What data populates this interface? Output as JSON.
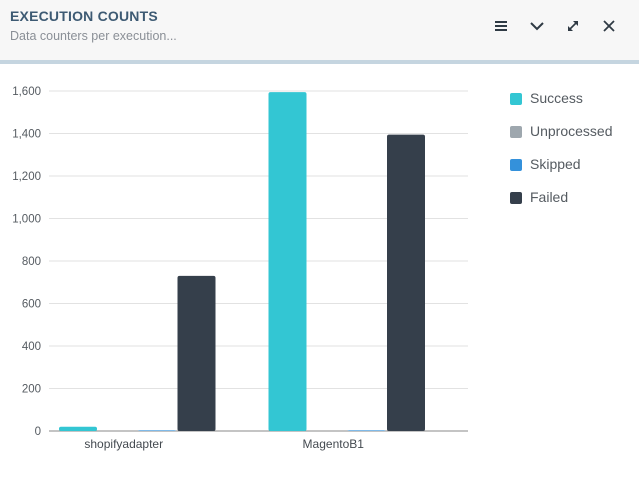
{
  "header": {
    "title": "EXECUTION COUNTS",
    "subtitle": "Data counters per execution..."
  },
  "toolbar": [
    {
      "name": "menu-icon"
    },
    {
      "name": "chevron-down-icon"
    },
    {
      "name": "expand-icon"
    },
    {
      "name": "close-icon"
    }
  ],
  "chart_data": {
    "type": "bar",
    "categories": [
      "shopifyadapter",
      "MagentoB1"
    ],
    "series": [
      {
        "name": "Success",
        "color": "#33c6d3",
        "values": [
          20,
          1595
        ]
      },
      {
        "name": "Unprocessed",
        "color": "#9ea7ae",
        "values": [
          0,
          0
        ]
      },
      {
        "name": "Skipped",
        "color": "#3491db",
        "values": [
          3,
          3
        ]
      },
      {
        "name": "Failed",
        "color": "#353f4b",
        "values": [
          730,
          1395
        ]
      }
    ],
    "yticks": [
      "0",
      "200",
      "400",
      "600",
      "800",
      "1,000",
      "1,200",
      "1,400",
      "1,600"
    ],
    "ylim": [
      0,
      1600
    ],
    "grid": true,
    "legend_position": "right"
  }
}
